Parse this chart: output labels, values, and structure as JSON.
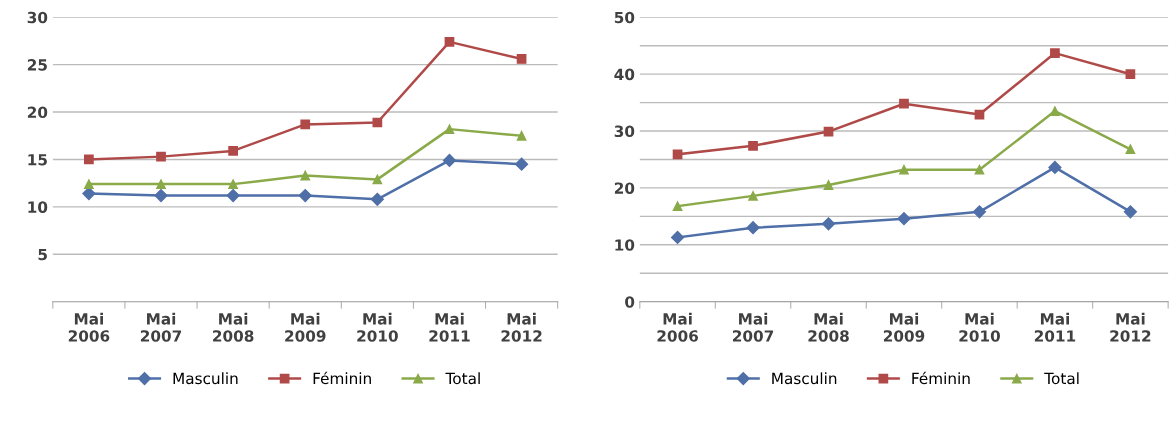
{
  "chart_data": [
    {
      "type": "line",
      "categories": [
        "Mai\n2006",
        "Mai\n2007",
        "Mai\n2008",
        "Mai\n2009",
        "Mai\n2010",
        "Mai\n2011",
        "Mai\n2012"
      ],
      "ylim": [
        0,
        30
      ],
      "yticks": [
        5,
        10,
        15,
        20,
        25,
        30
      ],
      "grid": "y",
      "legend": "bottom",
      "series": [
        {
          "name": "Masculin",
          "color": "#4f6fa8",
          "marker": "diamond",
          "values": [
            11.4,
            11.2,
            11.2,
            11.2,
            10.8,
            14.9,
            14.5
          ]
        },
        {
          "name": "Féminin",
          "color": "#b04a48",
          "marker": "square",
          "values": [
            15.0,
            15.3,
            15.9,
            18.7,
            18.9,
            27.4,
            25.6
          ]
        },
        {
          "name": "Total",
          "color": "#8aaa4a",
          "marker": "triangle",
          "values": [
            12.4,
            12.4,
            12.4,
            13.3,
            12.9,
            18.2,
            17.5
          ]
        }
      ]
    },
    {
      "type": "line",
      "categories": [
        "Mai\n2006",
        "Mai\n2007",
        "Mai\n2008",
        "Mai\n2009",
        "Mai\n2010",
        "Mai\n2011",
        "Mai\n2012"
      ],
      "ylim": [
        0,
        50
      ],
      "yticks": [
        0,
        {
          "value": 5,
          "label": null
        },
        10,
        {
          "value": 15,
          "label": null
        },
        20,
        {
          "value": 25,
          "label": null
        },
        30,
        {
          "value": 35,
          "label": null
        },
        40,
        {
          "value": 45,
          "label": null
        },
        50
      ],
      "grid": "y",
      "legend": "bottom",
      "series": [
        {
          "name": "Masculin",
          "color": "#4f6fa8",
          "marker": "diamond",
          "values": [
            11.3,
            13.0,
            13.7,
            14.6,
            15.8,
            23.6,
            15.8
          ]
        },
        {
          "name": "Féminin",
          "color": "#b04a48",
          "marker": "square",
          "values": [
            25.9,
            27.4,
            29.9,
            34.8,
            32.9,
            43.7,
            40.0
          ]
        },
        {
          "name": "Total",
          "color": "#8aaa4a",
          "marker": "triangle",
          "values": [
            16.8,
            18.6,
            20.5,
            23.2,
            23.2,
            33.5,
            26.8
          ]
        }
      ]
    }
  ]
}
